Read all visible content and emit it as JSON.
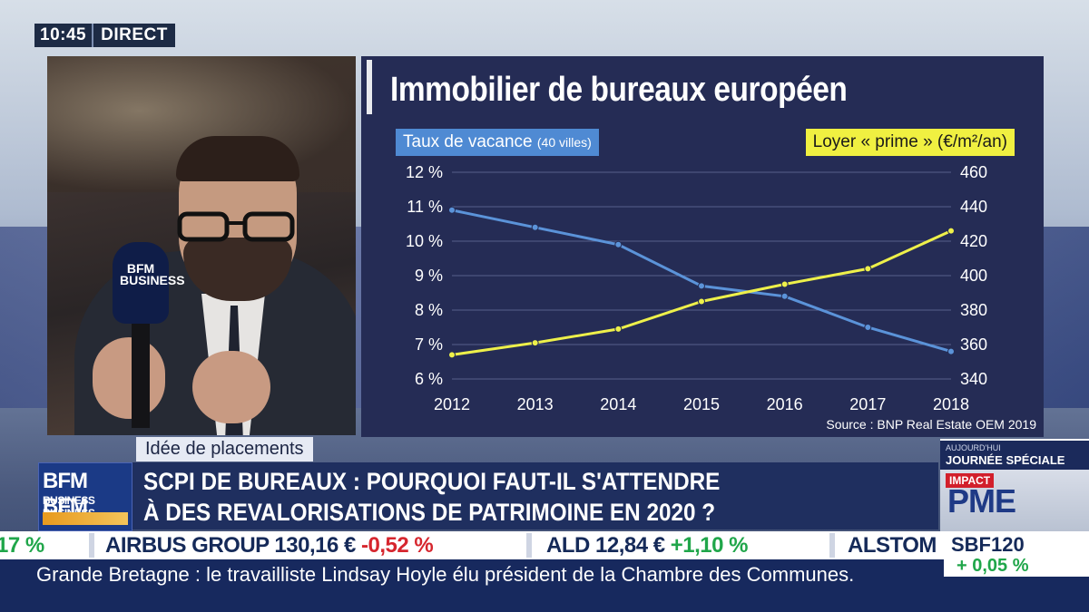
{
  "clock": {
    "time": "10:45",
    "live": "DIRECT"
  },
  "chart_data": {
    "type": "line",
    "title": "Immobilier de bureaux européen",
    "x": [
      "2012",
      "2013",
      "2014",
      "2015",
      "2016",
      "2017",
      "2018"
    ],
    "left_axis": {
      "ticks": [
        "12 %",
        "11 %",
        "10 %",
        "9 %",
        "8 %",
        "7 %",
        "6 %"
      ],
      "ylim": [
        6,
        12
      ]
    },
    "right_axis": {
      "ticks": [
        "460",
        "440",
        "420",
        "400",
        "380",
        "360",
        "340"
      ],
      "ylim": [
        340,
        460
      ]
    },
    "series": [
      {
        "name": "Taux de vacance",
        "name_note": "(40 villes)",
        "axis": "left",
        "color": "#5b93d9",
        "values": [
          10.9,
          10.4,
          9.9,
          8.7,
          8.4,
          7.5,
          6.8
        ]
      },
      {
        "name": "Loyer « prime » (€/m²/an)",
        "axis": "right",
        "color": "#eef04a",
        "values": [
          354,
          361,
          369,
          385,
          395,
          404,
          426
        ]
      }
    ],
    "source": "Source : BNP Real Estate OEM 2019",
    "grid": true,
    "legend": "top"
  },
  "lower_third": {
    "rubric": "Idée de placements",
    "logo_line1": "BFM BFM",
    "logo_line2": "BUSINESS BUSINESS",
    "headline_line1": "SCPI DE BUREAUX : POURQUOI FAUT-IL S'ATTENDRE",
    "headline_line2": "À DES REVALORISATIONS DE PATRIMOINE EN 2020 ?",
    "mic_logo": "BFM BUSINESS"
  },
  "promo": {
    "kicker": "AUJOURD'HUI",
    "title": "JOURNÉE SPÉCIALE",
    "badge": "IMPACT",
    "brand": "PME"
  },
  "ticker": [
    {
      "change": "17 %",
      "dir": "up"
    },
    {
      "name": "AIRBUS GROUP",
      "price": "130,16 €",
      "change": "-0,52 %",
      "dir": "down"
    },
    {
      "name": "ALD",
      "price": "12,84 €",
      "change": "+1,10 %",
      "dir": "up"
    },
    {
      "name": "ALSTOM"
    }
  ],
  "index": {
    "name": "SBF120",
    "change": "+ 0,05 %"
  },
  "crawl": {
    "text": "Grande Bretagne : le travailliste Lindsay Hoyle élu président de la Chambre des Communes."
  }
}
